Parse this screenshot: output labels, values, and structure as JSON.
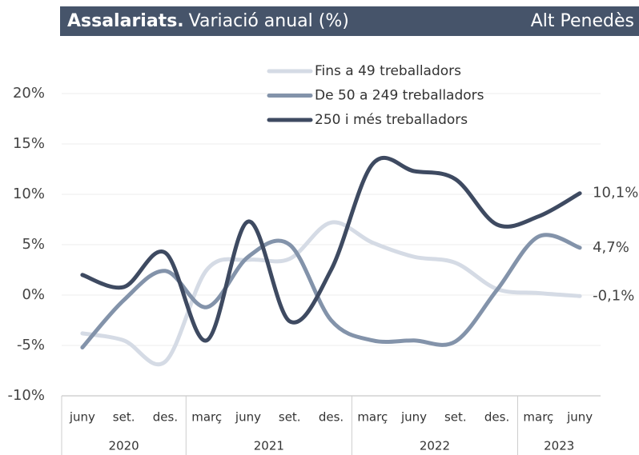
{
  "chart_data": {
    "type": "line",
    "title": "Assalariats.",
    "subtitle": "Variació anual (%)",
    "region": "Alt Penedès",
    "categories": [
      "juny",
      "set.",
      "des.",
      "març",
      "juny",
      "set.",
      "des.",
      "març",
      "juny",
      "set.",
      "des.",
      "març",
      "juny"
    ],
    "category_years": [
      "2020",
      null,
      null,
      "2021",
      null,
      null,
      null,
      "2022",
      null,
      null,
      null,
      "2023",
      null
    ],
    "series": [
      {
        "name": "Fins a 49 treballadors",
        "color": "#d5dbe5",
        "values": [
          -3.8,
          -4.5,
          -6.6,
          2.5,
          3.5,
          3.6,
          7.2,
          5.2,
          3.8,
          3.2,
          0.6,
          0.2,
          -0.1
        ],
        "value_labels": [
          null,
          null,
          null,
          null,
          null,
          null,
          null,
          null,
          null,
          null,
          null,
          null,
          "-0,1%"
        ]
      },
      {
        "name": "De 50 a 249 treballadors",
        "color": "#8393aa",
        "values": [
          -5.2,
          -0.5,
          2.4,
          -1.2,
          3.8,
          5.0,
          -2.5,
          -4.5,
          -4.5,
          -4.6,
          0.5,
          5.8,
          4.7
        ],
        "value_labels": [
          null,
          null,
          null,
          null,
          null,
          null,
          null,
          null,
          null,
          null,
          null,
          null,
          "4,7%"
        ]
      },
      {
        "name": "250 i més treballadors",
        "color": "#3e4a61",
        "values": [
          2.0,
          0.8,
          4.2,
          -4.5,
          7.3,
          -2.6,
          2.5,
          13.0,
          12.3,
          11.5,
          7.0,
          7.8,
          10.1
        ],
        "value_labels": [
          null,
          null,
          null,
          null,
          null,
          null,
          null,
          null,
          null,
          null,
          null,
          null,
          "10,1%"
        ]
      }
    ],
    "ylim": [
      -10,
      20
    ],
    "yticks": [
      {
        "value": -10,
        "label": "-10%"
      },
      {
        "value": -5,
        "label": "-5%"
      },
      {
        "value": 0,
        "label": "0%"
      },
      {
        "value": 5,
        "label": "5%"
      },
      {
        "value": 10,
        "label": "10%"
      },
      {
        "value": 15,
        "label": "15%"
      },
      {
        "value": 20,
        "label": "20%"
      }
    ],
    "grid": true,
    "legend": "top"
  }
}
